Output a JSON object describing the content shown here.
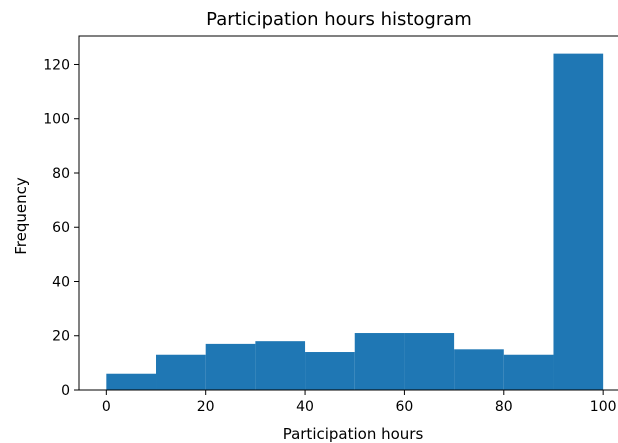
{
  "chart_data": {
    "type": "bar",
    "title": "Participation hours histogram",
    "xlabel": "Participation hours",
    "ylabel": "Frequency",
    "bins": [
      {
        "start": 0,
        "end": 10,
        "count": 6
      },
      {
        "start": 10,
        "end": 20,
        "count": 13
      },
      {
        "start": 20,
        "end": 30,
        "count": 17
      },
      {
        "start": 30,
        "end": 40,
        "count": 18
      },
      {
        "start": 40,
        "end": 50,
        "count": 14
      },
      {
        "start": 50,
        "end": 60,
        "count": 21
      },
      {
        "start": 60,
        "end": 70,
        "count": 21
      },
      {
        "start": 70,
        "end": 80,
        "count": 15
      },
      {
        "start": 80,
        "end": 90,
        "count": 13
      },
      {
        "start": 90,
        "end": 100,
        "count": 124
      }
    ],
    "xlim": [
      -5.5,
      105
    ],
    "ylim": [
      0,
      130.5
    ],
    "xticks": [
      0,
      20,
      40,
      60,
      80,
      100
    ],
    "xtick_labels": [
      "0",
      "20",
      "40",
      "60",
      "80",
      "100"
    ],
    "yticks": [
      0,
      20,
      40,
      60,
      80,
      100,
      120
    ],
    "ytick_labels": [
      "0",
      "20",
      "40",
      "60",
      "80",
      "100",
      "120"
    ],
    "bar_color": "#1f77b4",
    "grid": false
  }
}
